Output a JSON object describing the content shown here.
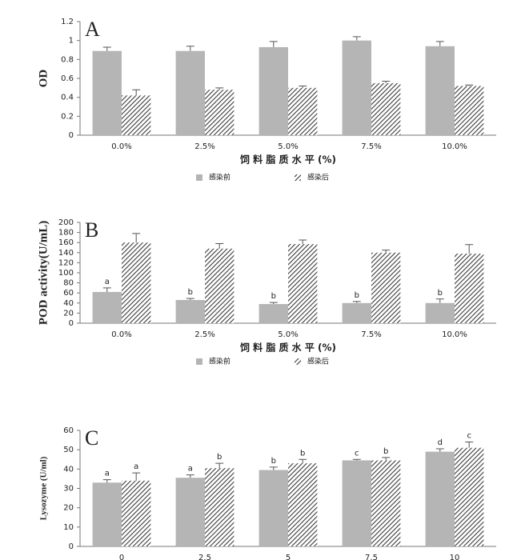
{
  "chart_data": [
    {
      "type": "bar",
      "panel_label": "A",
      "ylabel": "OD",
      "xlabel": "饲 料 脂 质 水 平 (%)",
      "categories": [
        "0.0%",
        "2.5%",
        "5.0%",
        "7.5%",
        "10.0%"
      ],
      "series": [
        {
          "name": "感染前",
          "color": "#b5b5b5",
          "pattern": "solid",
          "values": [
            0.89,
            0.89,
            0.93,
            1.0,
            0.94
          ],
          "errors": [
            0.04,
            0.05,
            0.06,
            0.04,
            0.05
          ]
        },
        {
          "name": "感染后",
          "color": "#3a3a3a",
          "pattern": "hatch",
          "values": [
            0.42,
            0.48,
            0.5,
            0.55,
            0.52
          ],
          "errors": [
            0.06,
            0.02,
            0.02,
            0.02,
            0.01
          ]
        }
      ],
      "ylim": [
        0,
        1.2
      ],
      "yticks": [
        0,
        0.2,
        0.4,
        0.6,
        0.8,
        1,
        1.2
      ],
      "legend": "bottom"
    },
    {
      "type": "bar",
      "panel_label": "B",
      "ylabel": "POD activity(U/mL)",
      "xlabel": "饲 料 脂 质 水 平 (%)",
      "categories": [
        "0.0%",
        "2.5%",
        "5.0%",
        "7.5%",
        "10.0%"
      ],
      "series": [
        {
          "name": "感染前",
          "color": "#b5b5b5",
          "pattern": "solid",
          "values": [
            62,
            46,
            38,
            40,
            40
          ],
          "errors": [
            8,
            3,
            3,
            3,
            8
          ],
          "letters": [
            "a",
            "b",
            "b",
            "b",
            "b"
          ]
        },
        {
          "name": "感染后",
          "color": "#3a3a3a",
          "pattern": "hatch",
          "values": [
            160,
            148,
            157,
            140,
            138
          ],
          "errors": [
            18,
            10,
            8,
            5,
            18
          ]
        }
      ],
      "ylim": [
        0,
        200
      ],
      "yticks": [
        0,
        20,
        40,
        60,
        80,
        100,
        120,
        140,
        160,
        180,
        200
      ],
      "legend": "bottom"
    },
    {
      "type": "bar",
      "panel_label": "C",
      "ylabel": "Lysozyme (U/ml)",
      "categories": [
        "0",
        "2.5",
        "5",
        "7.5",
        "10"
      ],
      "series": [
        {
          "color": "#b5b5b5",
          "pattern": "solid",
          "values": [
            33,
            35.5,
            39.5,
            44.5,
            49
          ],
          "errors": [
            1.5,
            1.5,
            1.5,
            0.5,
            1.5
          ],
          "letters": [
            "a",
            "a",
            "b",
            "c",
            "d"
          ]
        },
        {
          "color": "#3a3a3a",
          "pattern": "hatch",
          "values": [
            34,
            40.5,
            43,
            44.5,
            51
          ],
          "errors": [
            4,
            2.5,
            2,
            1.5,
            3
          ],
          "letters": [
            "a",
            "b",
            "b",
            "b",
            "c"
          ]
        }
      ],
      "ylim": [
        0,
        60
      ],
      "yticks": [
        0,
        10,
        20,
        30,
        40,
        50,
        60
      ]
    }
  ]
}
